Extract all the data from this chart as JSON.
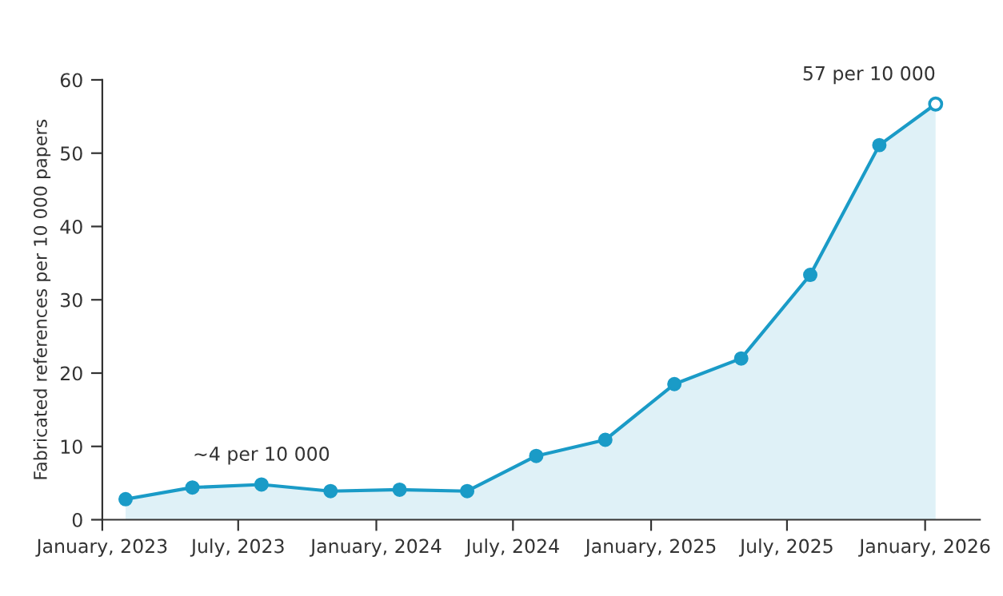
{
  "chart_data": {
    "type": "area",
    "ylabel": "Fabricated references per 10 000 papers",
    "x": [
      "2023-02-01",
      "2023-05-01",
      "2023-08-01",
      "2023-11-01",
      "2024-02-01",
      "2024-05-01",
      "2024-08-01",
      "2024-11-01",
      "2025-02-01",
      "2025-05-01",
      "2025-08-01",
      "2025-11-01",
      "2026-01-15"
    ],
    "series": [
      {
        "color": "#1a9bc7",
        "values": [
          2.8,
          4.4,
          4.8,
          3.9,
          4.1,
          3.9,
          8.7,
          10.9,
          18.5,
          22.0,
          33.4,
          51.1,
          56.7
        ]
      }
    ],
    "marker": "circle",
    "grid": false,
    "legend": false,
    "xlim": [
      "2023-01-01",
      "2026-03-15"
    ],
    "xticks": [
      {
        "value": "2023-01-01",
        "label": "January, 2023"
      },
      {
        "value": "2023-07-01",
        "label": "July, 2023"
      },
      {
        "value": "2024-01-01",
        "label": "January, 2024"
      },
      {
        "value": "2024-07-01",
        "label": "July, 2024"
      },
      {
        "value": "2025-01-01",
        "label": "January, 2025"
      },
      {
        "value": "2025-07-01",
        "label": "July, 2025"
      },
      {
        "value": "2026-01-01",
        "label": "January, 2026"
      }
    ],
    "ylim": [
      0,
      60
    ],
    "yticks": [
      0,
      10,
      20,
      30,
      40,
      50,
      60
    ],
    "annotations": [
      {
        "text": "~4 per 10 000",
        "x": "2023-08-01",
        "y": 4.8
      },
      {
        "text": "57 per 10 000",
        "x": "2026-01-15",
        "y": 56.7
      }
    ]
  }
}
